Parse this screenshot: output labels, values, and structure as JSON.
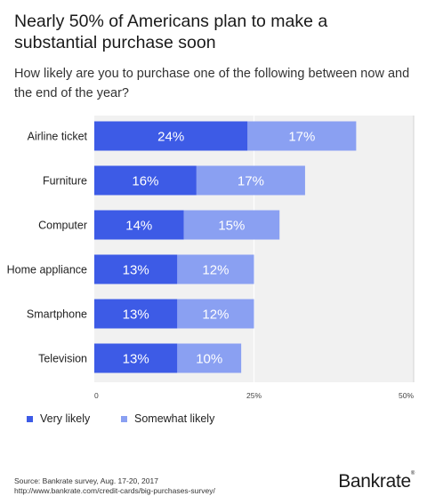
{
  "title": "Nearly 50% of Americans plan to make a substantial purchase soon",
  "subtitle": "How likely are you to purchase one of the following between now and the end of the year?",
  "source": {
    "line1": "Source: Bankrate survey, Aug. 17-20, 2017",
    "line2": "http://www.bankrate.com/credit-cards/big-purchases-survey/"
  },
  "logo": "Bankrate",
  "colors": {
    "very_likely": "#3d5be6",
    "somewhat_likely": "#8aa0f2",
    "plot_bg": "#f1f1f1",
    "grid": "#ffffff"
  },
  "chart_data": {
    "type": "bar",
    "orientation": "horizontal",
    "stacked": true,
    "categories": [
      "Airline ticket",
      "Furniture",
      "Computer",
      "Home appliance",
      "Smartphone",
      "Television"
    ],
    "series": [
      {
        "name": "Very likely",
        "values": [
          24,
          16,
          14,
          13,
          13,
          13
        ],
        "labels": [
          "24%",
          "16%",
          "14%",
          "13%",
          "13%",
          "13%"
        ]
      },
      {
        "name": "Somewhat likely",
        "values": [
          17,
          17,
          15,
          12,
          12,
          10
        ],
        "labels": [
          "17%",
          "17%",
          "15%",
          "12%",
          "12%",
          "10%"
        ]
      }
    ],
    "xlim": [
      0,
      50
    ],
    "xticks": [
      0,
      25,
      50
    ],
    "xtick_labels": [
      "0",
      "25%",
      "50%"
    ],
    "legend_position": "bottom-left"
  }
}
